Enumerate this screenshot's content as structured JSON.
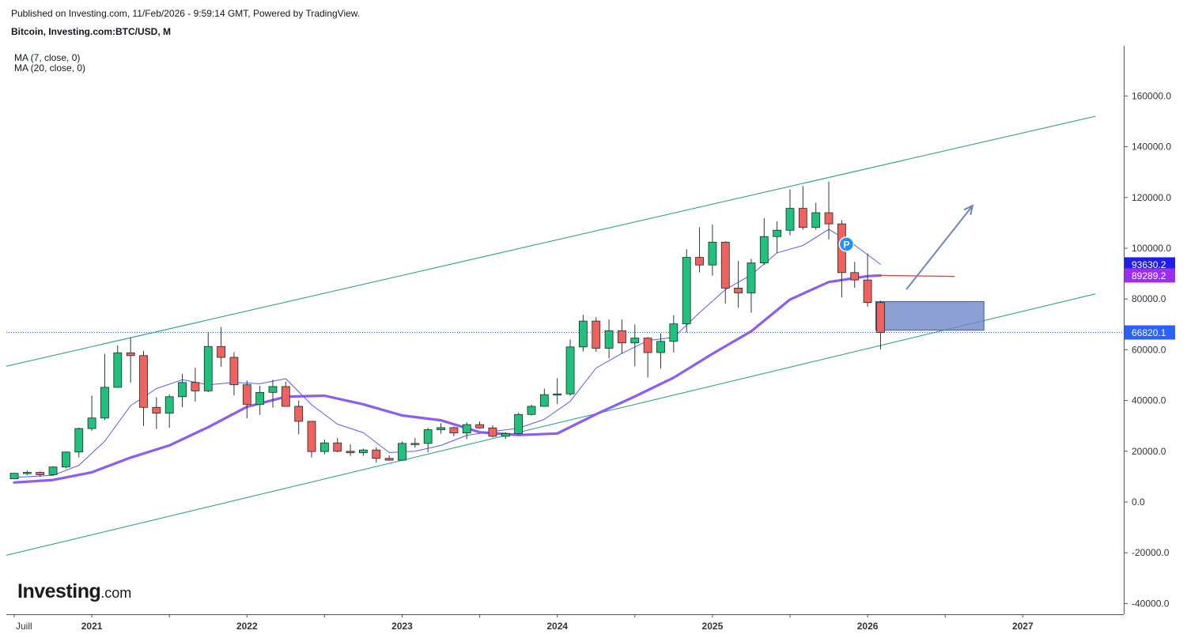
{
  "header": {
    "published": "Published on Investing.com, 11/Feb/2026 - 9:59:14 GMT, Powered by TradingView.",
    "title": "Bitcoin, Investing.com:BTC/USD, M"
  },
  "legend": {
    "ma7": "MA (7, close, 0)",
    "ma20": "MA (20, close, 0)"
  },
  "logo": {
    "main": "Investing",
    "sub": ".com"
  },
  "colors": {
    "up": "#1fc17c",
    "down": "#f0625d",
    "wick": "#2d3a36",
    "ma7": "#5b5ce6",
    "ma20": "#8b5cf6",
    "channel": "#1a9b82",
    "zone": "#6f87c8",
    "arrow": "#6e86b9",
    "last_price": "#2962ff",
    "ma7_badge": "#1e1ee6",
    "ma20_badge": "#9b2ef0",
    "forecast": "#e53935",
    "p_marker": "#1e90ff"
  },
  "chart_data": {
    "type": "candlestick",
    "title": "Bitcoin, Investing.com:BTC/USD, M",
    "interval": "monthly",
    "xlabel": "",
    "ylabel": "",
    "ylim": [
      -42000,
      175000
    ],
    "y_ticks": [
      "160000.0",
      "140000.0",
      "120000.0",
      "100000.0",
      "80000.0",
      "60000.0",
      "40000.0",
      "20000.0",
      "0.0",
      "-20000.0",
      "-40000.0"
    ],
    "y_tick_values": [
      160000,
      140000,
      120000,
      100000,
      80000,
      60000,
      40000,
      20000,
      0,
      -20000,
      -40000
    ],
    "x_ticks": [
      "Juill",
      "2021",
      "2022",
      "2023",
      "2024",
      "2025",
      "2026",
      "2027"
    ],
    "x_tick_dates": [
      "2020-07",
      "2021-01",
      "2022-01",
      "2023-01",
      "2024-01",
      "2025-01",
      "2026-01",
      "2027-01"
    ],
    "x_range": [
      "2020-07",
      "2027-06"
    ],
    "candles": [
      {
        "t": "2020-07",
        "o": 9140,
        "h": 11400,
        "l": 9000,
        "c": 11330
      },
      {
        "t": "2020-08",
        "o": 11330,
        "h": 12400,
        "l": 10600,
        "c": 11650
      },
      {
        "t": "2020-09",
        "o": 11650,
        "h": 12070,
        "l": 10000,
        "c": 10780
      },
      {
        "t": "2020-10",
        "o": 10780,
        "h": 14100,
        "l": 10400,
        "c": 13800
      },
      {
        "t": "2020-11",
        "o": 13800,
        "h": 19900,
        "l": 13200,
        "c": 19700
      },
      {
        "t": "2020-12",
        "o": 19700,
        "h": 29300,
        "l": 17600,
        "c": 28950
      },
      {
        "t": "2021-01",
        "o": 28950,
        "h": 41900,
        "l": 28100,
        "c": 33100
      },
      {
        "t": "2021-02",
        "o": 33100,
        "h": 58400,
        "l": 32300,
        "c": 45200
      },
      {
        "t": "2021-03",
        "o": 45200,
        "h": 61700,
        "l": 45000,
        "c": 58800
      },
      {
        "t": "2021-04",
        "o": 58800,
        "h": 64800,
        "l": 47000,
        "c": 57700
      },
      {
        "t": "2021-05",
        "o": 57700,
        "h": 59600,
        "l": 30000,
        "c": 37300
      },
      {
        "t": "2021-06",
        "o": 37300,
        "h": 41300,
        "l": 28800,
        "c": 35000
      },
      {
        "t": "2021-07",
        "o": 35000,
        "h": 42400,
        "l": 29300,
        "c": 41500
      },
      {
        "t": "2021-08",
        "o": 41500,
        "h": 50500,
        "l": 37400,
        "c": 47100
      },
      {
        "t": "2021-09",
        "o": 47100,
        "h": 52900,
        "l": 39600,
        "c": 43800
      },
      {
        "t": "2021-10",
        "o": 43800,
        "h": 67000,
        "l": 43300,
        "c": 61300
      },
      {
        "t": "2021-11",
        "o": 61300,
        "h": 69000,
        "l": 53300,
        "c": 57000
      },
      {
        "t": "2021-12",
        "o": 57000,
        "h": 59100,
        "l": 42000,
        "c": 46200
      },
      {
        "t": "2022-01",
        "o": 46200,
        "h": 47900,
        "l": 33000,
        "c": 38500
      },
      {
        "t": "2022-02",
        "o": 38500,
        "h": 45800,
        "l": 34300,
        "c": 43200
      },
      {
        "t": "2022-03",
        "o": 43200,
        "h": 48200,
        "l": 37200,
        "c": 45500
      },
      {
        "t": "2022-04",
        "o": 45500,
        "h": 47400,
        "l": 37700,
        "c": 37700
      },
      {
        "t": "2022-05",
        "o": 37700,
        "h": 40000,
        "l": 26700,
        "c": 31800
      },
      {
        "t": "2022-06",
        "o": 31800,
        "h": 31900,
        "l": 17600,
        "c": 19900
      },
      {
        "t": "2022-07",
        "o": 19900,
        "h": 24600,
        "l": 18800,
        "c": 23300
      },
      {
        "t": "2022-08",
        "o": 23300,
        "h": 25200,
        "l": 19600,
        "c": 20000
      },
      {
        "t": "2022-09",
        "o": 20000,
        "h": 22800,
        "l": 18200,
        "c": 19400
      },
      {
        "t": "2022-10",
        "o": 19400,
        "h": 21000,
        "l": 18200,
        "c": 20500
      },
      {
        "t": "2022-11",
        "o": 20500,
        "h": 21500,
        "l": 15500,
        "c": 17200
      },
      {
        "t": "2022-12",
        "o": 17200,
        "h": 18400,
        "l": 16300,
        "c": 16500
      },
      {
        "t": "2023-01",
        "o": 16500,
        "h": 23900,
        "l": 16500,
        "c": 23100
      },
      {
        "t": "2023-02",
        "o": 23100,
        "h": 25200,
        "l": 21400,
        "c": 23100
      },
      {
        "t": "2023-03",
        "o": 23100,
        "h": 29200,
        "l": 19600,
        "c": 28500
      },
      {
        "t": "2023-04",
        "o": 28500,
        "h": 31000,
        "l": 26900,
        "c": 29300
      },
      {
        "t": "2023-05",
        "o": 29300,
        "h": 29800,
        "l": 25900,
        "c": 27200
      },
      {
        "t": "2023-06",
        "o": 27200,
        "h": 31400,
        "l": 24800,
        "c": 30500
      },
      {
        "t": "2023-07",
        "o": 30500,
        "h": 31800,
        "l": 28900,
        "c": 29200
      },
      {
        "t": "2023-08",
        "o": 29200,
        "h": 30200,
        "l": 25400,
        "c": 25900
      },
      {
        "t": "2023-09",
        "o": 25900,
        "h": 27500,
        "l": 24900,
        "c": 27000
      },
      {
        "t": "2023-10",
        "o": 27000,
        "h": 35200,
        "l": 26600,
        "c": 34500
      },
      {
        "t": "2023-11",
        "o": 34500,
        "h": 38400,
        "l": 34100,
        "c": 37700
      },
      {
        "t": "2023-12",
        "o": 37700,
        "h": 44700,
        "l": 37600,
        "c": 42300
      },
      {
        "t": "2024-01",
        "o": 42300,
        "h": 48800,
        "l": 38600,
        "c": 42600
      },
      {
        "t": "2024-02",
        "o": 42600,
        "h": 64000,
        "l": 41900,
        "c": 61100
      },
      {
        "t": "2024-03",
        "o": 61100,
        "h": 73800,
        "l": 59300,
        "c": 71300
      },
      {
        "t": "2024-04",
        "o": 71300,
        "h": 72800,
        "l": 59200,
        "c": 60600
      },
      {
        "t": "2024-05",
        "o": 60600,
        "h": 71900,
        "l": 56600,
        "c": 67500
      },
      {
        "t": "2024-06",
        "o": 67500,
        "h": 71900,
        "l": 58500,
        "c": 62700
      },
      {
        "t": "2024-07",
        "o": 62700,
        "h": 70000,
        "l": 53500,
        "c": 64600
      },
      {
        "t": "2024-08",
        "o": 64600,
        "h": 65000,
        "l": 49100,
        "c": 58900
      },
      {
        "t": "2024-09",
        "o": 58900,
        "h": 66500,
        "l": 52600,
        "c": 63300
      },
      {
        "t": "2024-10",
        "o": 63300,
        "h": 73600,
        "l": 58900,
        "c": 70200
      },
      {
        "t": "2024-11",
        "o": 70200,
        "h": 99600,
        "l": 66800,
        "c": 96400
      },
      {
        "t": "2024-12",
        "o": 96400,
        "h": 108300,
        "l": 90500,
        "c": 93400
      },
      {
        "t": "2025-01",
        "o": 93400,
        "h": 109400,
        "l": 89200,
        "c": 102400
      },
      {
        "t": "2025-02",
        "o": 102400,
        "h": 102700,
        "l": 78200,
        "c": 84300
      },
      {
        "t": "2025-03",
        "o": 84300,
        "h": 95000,
        "l": 76600,
        "c": 82400
      },
      {
        "t": "2025-04",
        "o": 82400,
        "h": 95800,
        "l": 74600,
        "c": 94200
      },
      {
        "t": "2025-05",
        "o": 94200,
        "h": 111900,
        "l": 93400,
        "c": 104600
      },
      {
        "t": "2025-06",
        "o": 104600,
        "h": 110600,
        "l": 98200,
        "c": 107100
      },
      {
        "t": "2025-07",
        "o": 107100,
        "h": 123200,
        "l": 105100,
        "c": 115700
      },
      {
        "t": "2025-08",
        "o": 115700,
        "h": 124500,
        "l": 107300,
        "c": 108200
      },
      {
        "t": "2025-09",
        "o": 108200,
        "h": 117900,
        "l": 107300,
        "c": 114000
      },
      {
        "t": "2025-10",
        "o": 114000,
        "h": 126200,
        "l": 103500,
        "c": 109600
      },
      {
        "t": "2025-11",
        "o": 109600,
        "h": 111100,
        "l": 80600,
        "c": 90400
      },
      {
        "t": "2025-12",
        "o": 90400,
        "h": 94600,
        "l": 84400,
        "c": 87500
      },
      {
        "t": "2026-01",
        "o": 87500,
        "h": 97900,
        "l": 77000,
        "c": 78600
      },
      {
        "t": "2026-02",
        "o": 78600,
        "h": 79300,
        "l": 60100,
        "c": 66820
      }
    ],
    "series": [
      {
        "name": "MA (7, close, 0)",
        "values": [
          {
            "t": "2020-07",
            "v": 9700
          },
          {
            "t": "2020-10",
            "v": 10500
          },
          {
            "t": "2020-12",
            "v": 14500
          },
          {
            "t": "2021-02",
            "v": 24000
          },
          {
            "t": "2021-04",
            "v": 38000
          },
          {
            "t": "2021-06",
            "v": 44700
          },
          {
            "t": "2021-08",
            "v": 48200
          },
          {
            "t": "2021-10",
            "v": 46200
          },
          {
            "t": "2021-12",
            "v": 47100
          },
          {
            "t": "2022-02",
            "v": 46600
          },
          {
            "t": "2022-04",
            "v": 48600
          },
          {
            "t": "2022-06",
            "v": 38300
          },
          {
            "t": "2022-08",
            "v": 30700
          },
          {
            "t": "2022-10",
            "v": 27300
          },
          {
            "t": "2022-12",
            "v": 19500
          },
          {
            "t": "2023-02",
            "v": 20000
          },
          {
            "t": "2023-04",
            "v": 22300
          },
          {
            "t": "2023-06",
            "v": 26300
          },
          {
            "t": "2023-08",
            "v": 27800
          },
          {
            "t": "2023-10",
            "v": 29100
          },
          {
            "t": "2023-12",
            "v": 32600
          },
          {
            "t": "2024-02",
            "v": 39700
          },
          {
            "t": "2024-04",
            "v": 52800
          },
          {
            "t": "2024-06",
            "v": 58600
          },
          {
            "t": "2024-08",
            "v": 63600
          },
          {
            "t": "2024-10",
            "v": 64900
          },
          {
            "t": "2024-12",
            "v": 74600
          },
          {
            "t": "2025-02",
            "v": 83700
          },
          {
            "t": "2025-04",
            "v": 89500
          },
          {
            "t": "2025-06",
            "v": 98200
          },
          {
            "t": "2025-08",
            "v": 101100
          },
          {
            "t": "2025-10",
            "v": 107500
          },
          {
            "t": "2025-12",
            "v": 101200
          },
          {
            "t": "2026-02",
            "v": 93630
          }
        ]
      },
      {
        "name": "MA (20, close, 0)",
        "values": [
          {
            "t": "2020-07",
            "v": 7700
          },
          {
            "t": "2020-10",
            "v": 8700
          },
          {
            "t": "2021-01",
            "v": 11700
          },
          {
            "t": "2021-04",
            "v": 17500
          },
          {
            "t": "2021-07",
            "v": 22300
          },
          {
            "t": "2021-10",
            "v": 29500
          },
          {
            "t": "2022-01",
            "v": 37500
          },
          {
            "t": "2022-04",
            "v": 41500
          },
          {
            "t": "2022-07",
            "v": 41900
          },
          {
            "t": "2022-10",
            "v": 38500
          },
          {
            "t": "2023-01",
            "v": 34100
          },
          {
            "t": "2023-04",
            "v": 32200
          },
          {
            "t": "2023-07",
            "v": 27500
          },
          {
            "t": "2023-10",
            "v": 26400
          },
          {
            "t": "2024-01",
            "v": 27000
          },
          {
            "t": "2024-04",
            "v": 34600
          },
          {
            "t": "2024-07",
            "v": 41600
          },
          {
            "t": "2024-10",
            "v": 49000
          },
          {
            "t": "2025-01",
            "v": 58400
          },
          {
            "t": "2025-04",
            "v": 67300
          },
          {
            "t": "2025-07",
            "v": 79800
          },
          {
            "t": "2025-10",
            "v": 86700
          },
          {
            "t": "2026-01",
            "v": 89000
          },
          {
            "t": "2026-02",
            "v": 89289
          }
        ]
      }
    ],
    "last_price": "66820.1",
    "badges": [
      {
        "label": "93630.2",
        "value": 93630.2,
        "series": "MA (7, close, 0)"
      },
      {
        "label": "89289.2",
        "value": 89289.2,
        "series": "MA (20, close, 0)"
      },
      {
        "label": "66820.1",
        "value": 66820.1,
        "series": "last"
      }
    ],
    "annotations": {
      "channel_upper": [
        {
          "t": "2020-07",
          "v": 53500
        },
        {
          "t": "2027-06",
          "v": 152000
        }
      ],
      "channel_lower": [
        {
          "t": "2020-07",
          "v": -21000
        },
        {
          "t": "2027-06",
          "v": 82000
        }
      ],
      "zone": {
        "t0": "2026-02",
        "t1": "2026-10",
        "v0": 67700,
        "v1": 79000
      },
      "forecast_line": [
        {
          "t": "2026-02",
          "v": 89300
        },
        {
          "t": "2026-07",
          "v": 88900
        }
      ],
      "arrow": [
        {
          "t": "2026-04",
          "v": 83800
        },
        {
          "t": "2026-09",
          "v": 116800
        }
      ],
      "marker": {
        "label": "P",
        "t": "2025-11",
        "v": 101600
      }
    },
    "grid": false,
    "legend_position": "top-left"
  }
}
